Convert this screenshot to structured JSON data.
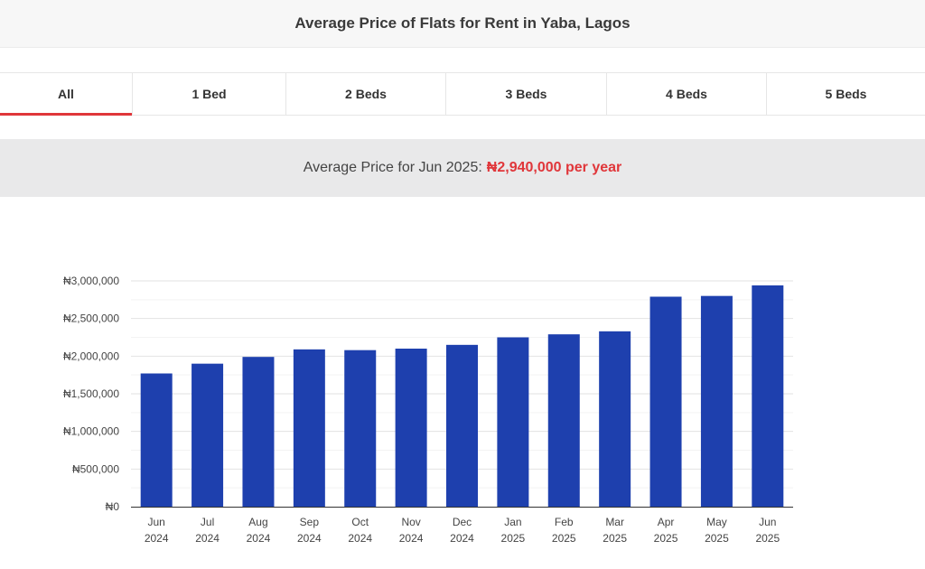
{
  "header": {
    "title": "Average Price of Flats for Rent in Yaba, Lagos"
  },
  "tabs": [
    {
      "label": "All",
      "active": true
    },
    {
      "label": "1 Bed",
      "active": false
    },
    {
      "label": "2 Beds",
      "active": false
    },
    {
      "label": "3 Beds",
      "active": false
    },
    {
      "label": "4 Beds",
      "active": false
    },
    {
      "label": "5 Beds",
      "active": false
    }
  ],
  "summary": {
    "prefix": "Average Price for Jun 2025:",
    "value": "₦2,940,000 per year"
  },
  "colors": {
    "accent": "#e0363a",
    "bar": "#1e40ae"
  },
  "chart_data": {
    "type": "bar",
    "title": "",
    "xlabel": "",
    "ylabel": "",
    "categories": [
      [
        "Jun",
        "2024"
      ],
      [
        "Jul",
        "2024"
      ],
      [
        "Aug",
        "2024"
      ],
      [
        "Sep",
        "2024"
      ],
      [
        "Oct",
        "2024"
      ],
      [
        "Nov",
        "2024"
      ],
      [
        "Dec",
        "2024"
      ],
      [
        "Jan",
        "2025"
      ],
      [
        "Feb",
        "2025"
      ],
      [
        "Mar",
        "2025"
      ],
      [
        "Apr",
        "2025"
      ],
      [
        "May",
        "2025"
      ],
      [
        "Jun",
        "2025"
      ]
    ],
    "values": [
      1770000,
      1900000,
      1990000,
      2090000,
      2080000,
      2100000,
      2150000,
      2250000,
      2290000,
      2330000,
      2790000,
      2800000,
      2940000
    ],
    "ylim": [
      0,
      3000000
    ],
    "yticks": [
      0,
      500000,
      1000000,
      1500000,
      2000000,
      2500000,
      3000000
    ],
    "ytick_labels": [
      "₦0",
      "₦500,000",
      "₦1,000,000",
      "₦1,500,000",
      "₦2,000,000",
      "₦2,500,000",
      "₦3,000,000"
    ],
    "grid": true,
    "legend": "none"
  }
}
